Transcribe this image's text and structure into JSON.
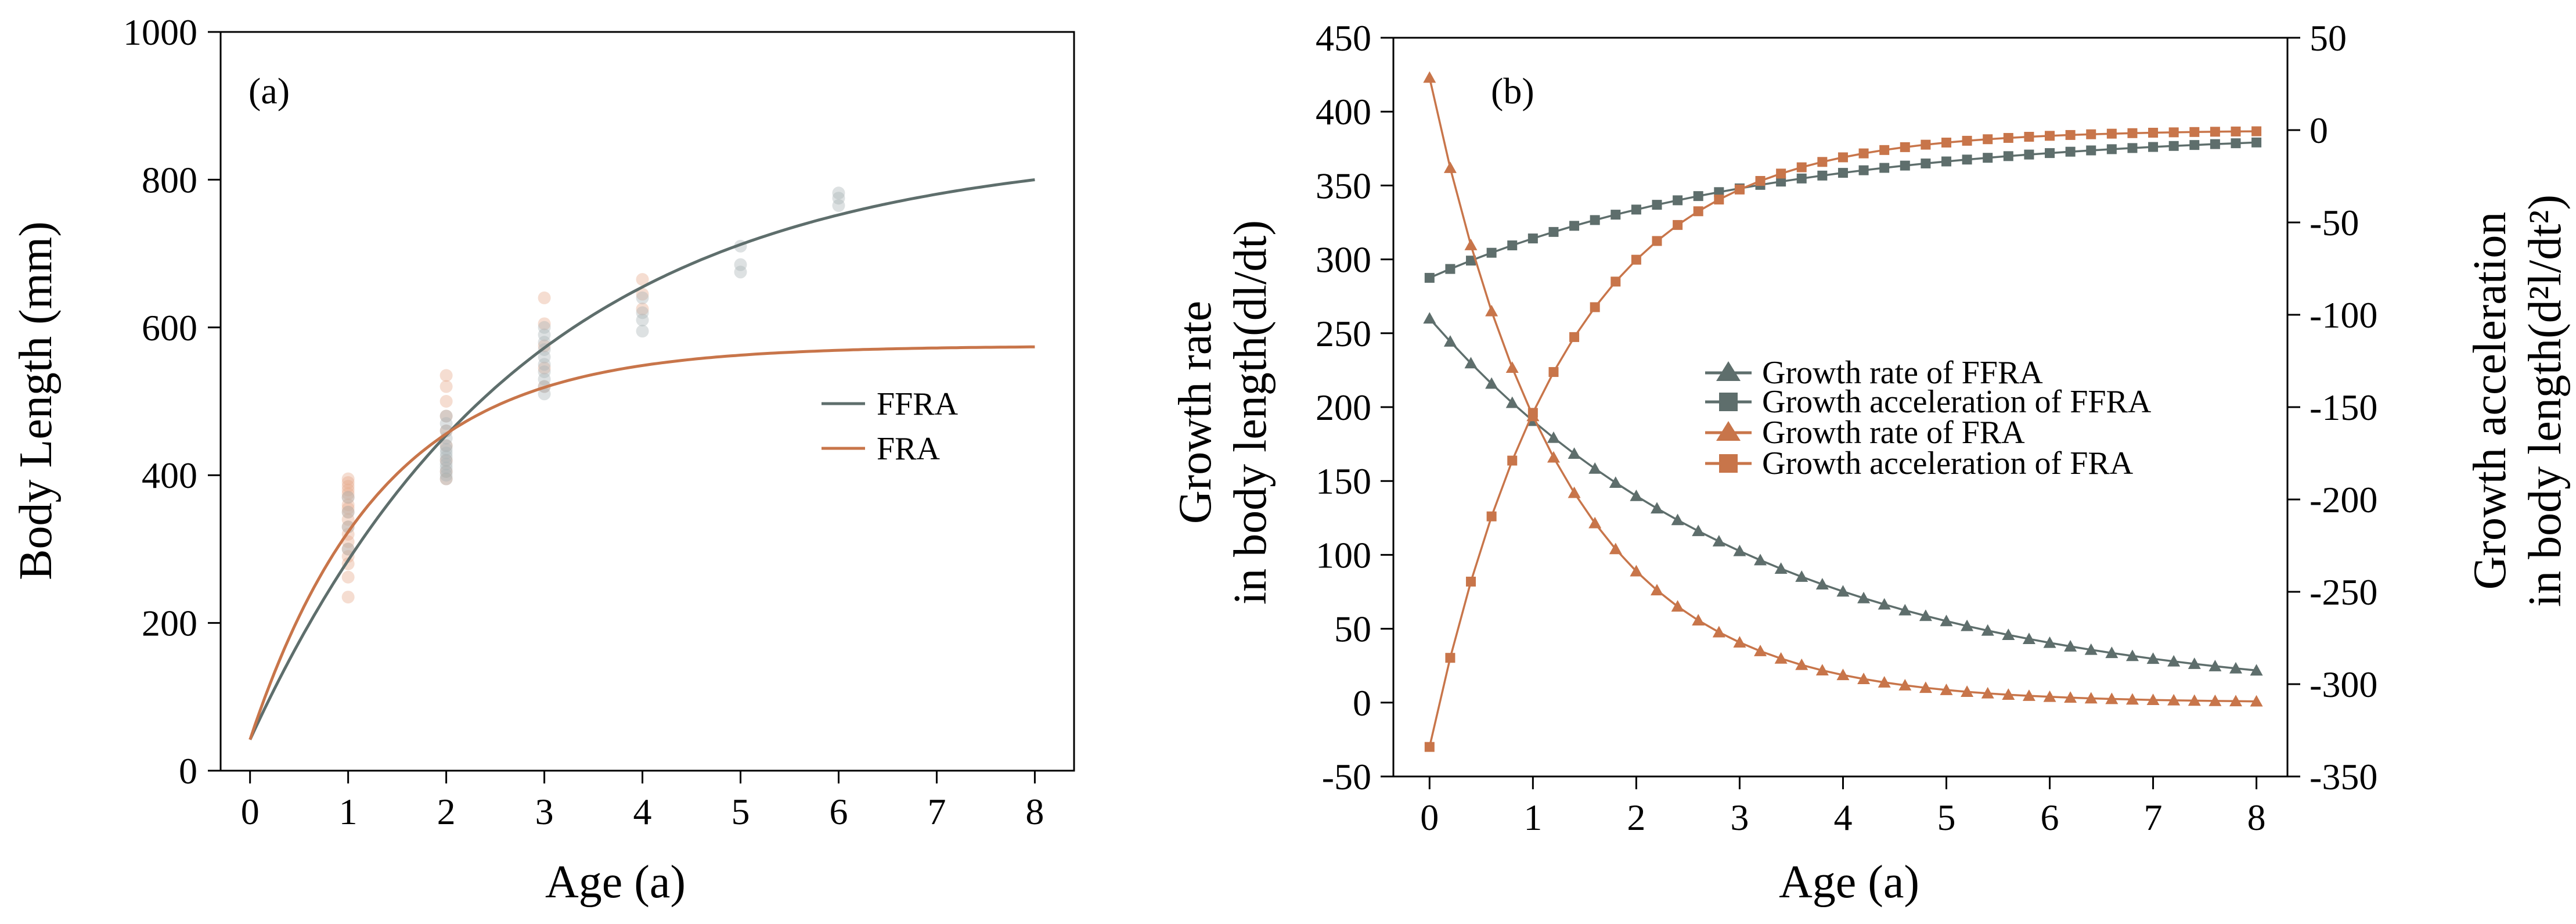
{
  "colors": {
    "ffra": "#5e6e6c",
    "fra": "#c8754a",
    "ffra_scatter": "#a9b4b6",
    "fra_scatter": "#e6a98d"
  },
  "chart_data": [
    {
      "type": "line",
      "panel_label": "(a)",
      "xlabel": "Age (a)",
      "ylabel": "Body Length (mm)",
      "xlim": [
        -0.3,
        8.4
      ],
      "ylim": [
        0,
        1000
      ],
      "xticks": [
        "0",
        "1",
        "2",
        "3",
        "4",
        "5",
        "6",
        "7",
        "8"
      ],
      "yticks": [
        "0",
        "200",
        "400",
        "600",
        "800",
        "1000"
      ],
      "legend_position": "right-middle",
      "series": [
        {
          "name": "FFRA",
          "color_key": "ffra",
          "model": "von Bertalanffy",
          "Linf": 845,
          "k": 0.36,
          "L0": 42
        },
        {
          "name": "FRA",
          "color_key": "fra",
          "model": "von Bertalanffy",
          "Linf": 575,
          "k": 0.75,
          "L0": 42
        }
      ],
      "observations": {
        "FRA": [
          [
            1,
            235
          ],
          [
            1,
            262
          ],
          [
            1,
            280
          ],
          [
            1,
            290
          ],
          [
            1,
            300
          ],
          [
            1,
            310
          ],
          [
            1,
            320
          ],
          [
            1,
            330
          ],
          [
            1,
            340
          ],
          [
            1,
            350
          ],
          [
            1,
            355
          ],
          [
            1,
            360
          ],
          [
            1,
            370
          ],
          [
            1,
            375
          ],
          [
            1,
            380
          ],
          [
            1,
            385
          ],
          [
            1,
            390
          ],
          [
            1,
            395
          ],
          [
            2,
            395
          ],
          [
            2,
            405
          ],
          [
            2,
            420
          ],
          [
            2,
            440
          ],
          [
            2,
            460
          ],
          [
            2,
            480
          ],
          [
            2,
            500
          ],
          [
            2,
            520
          ],
          [
            2,
            535
          ],
          [
            3,
            520
          ],
          [
            3,
            545
          ],
          [
            3,
            575
          ],
          [
            3,
            605
          ],
          [
            3,
            640
          ],
          [
            4,
            625
          ],
          [
            4,
            645
          ],
          [
            4,
            665
          ]
        ],
        "FFRA": [
          [
            1,
            300
          ],
          [
            1,
            330
          ],
          [
            1,
            350
          ],
          [
            1,
            370
          ],
          [
            2,
            395
          ],
          [
            2,
            400
          ],
          [
            2,
            405
          ],
          [
            2,
            410
          ],
          [
            2,
            415
          ],
          [
            2,
            420
          ],
          [
            2,
            425
          ],
          [
            2,
            430
          ],
          [
            2,
            435
          ],
          [
            2,
            440
          ],
          [
            2,
            450
          ],
          [
            2,
            460
          ],
          [
            2,
            470
          ],
          [
            2,
            480
          ],
          [
            3,
            510
          ],
          [
            3,
            520
          ],
          [
            3,
            530
          ],
          [
            3,
            540
          ],
          [
            3,
            550
          ],
          [
            3,
            560
          ],
          [
            3,
            570
          ],
          [
            3,
            580
          ],
          [
            3,
            590
          ],
          [
            3,
            600
          ],
          [
            4,
            595
          ],
          [
            4,
            610
          ],
          [
            4,
            620
          ],
          [
            4,
            640
          ],
          [
            5,
            675
          ],
          [
            5,
            685
          ],
          [
            5,
            710
          ],
          [
            6,
            765
          ],
          [
            6,
            775
          ],
          [
            6,
            782
          ]
        ]
      }
    },
    {
      "type": "line",
      "panel_label": "(b)",
      "xlabel": "Age (a)",
      "ylabel_left": [
        "Growth rate",
        "in body length(dl/dt)"
      ],
      "ylabel_right": [
        "Growth acceleration",
        "in body length(d²l/dt²)"
      ],
      "xlim": [
        -0.35,
        8.3
      ],
      "ylim_left": [
        -50,
        450
      ],
      "ylim_right": [
        -350,
        50
      ],
      "xticks": [
        "0",
        "1",
        "2",
        "3",
        "4",
        "5",
        "6",
        "7",
        "8"
      ],
      "yticks_left": [
        "-50",
        "0",
        "50",
        "100",
        "150",
        "200",
        "250",
        "300",
        "350",
        "400",
        "450"
      ],
      "yticks_right": [
        "-350",
        "-300",
        "-250",
        "-200",
        "-150",
        "-100",
        "-50",
        "0",
        "50"
      ],
      "x_step": 0.2,
      "legend_position": "center-right",
      "series": [
        {
          "name": "Growth rate of FFRA",
          "axis": "left",
          "marker": "triangle",
          "color_key": "ffra",
          "model": "a*exp(-k*t)",
          "a": 260,
          "k": 0.31
        },
        {
          "name": "Growth acceleration of FFRA",
          "axis": "right",
          "marker": "square",
          "color_key": "ffra",
          "model": "-a*exp(-k*t)",
          "a": 80,
          "k": 0.31
        },
        {
          "name": "Growth rate of FRA",
          "axis": "left",
          "marker": "triangle",
          "color_key": "fra",
          "model": "a*exp(-k*t)",
          "a": 423,
          "k": 0.78
        },
        {
          "name": "Growth acceleration of FRA",
          "axis": "right",
          "marker": "square",
          "color_key": "fra",
          "model": "-a*exp(-k*t)",
          "a": 334,
          "k": 0.78
        }
      ]
    }
  ]
}
